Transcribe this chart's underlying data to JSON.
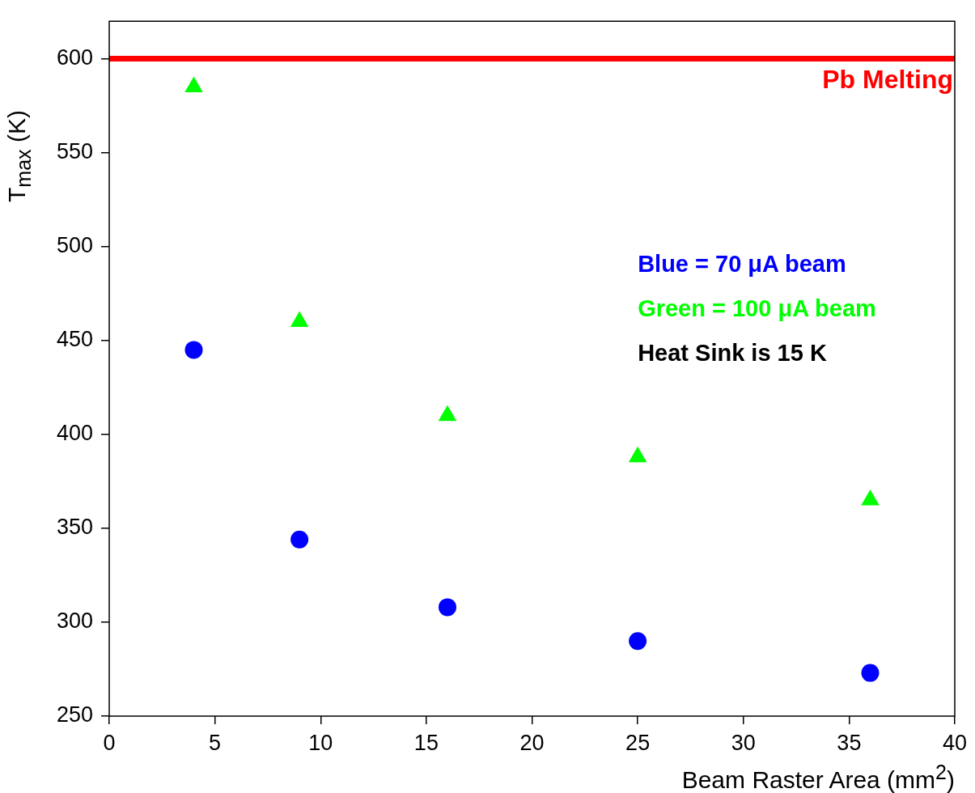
{
  "chart_data": {
    "type": "scatter",
    "xlabel": "Beam Raster Area (mm$^{2}$)",
    "ylabel": "T$_{max}$ (K)",
    "xlim": [
      0,
      40
    ],
    "xticks": [
      0,
      5,
      10,
      15,
      20,
      25,
      30,
      35,
      40
    ],
    "ylim": [
      250,
      620
    ],
    "yticks": [
      250,
      300,
      350,
      400,
      450,
      500,
      550,
      600
    ],
    "grid": false,
    "legend": false,
    "series": [
      {
        "color": "#0000ff",
        "marker": "circle",
        "x": [
          4,
          9,
          16,
          25,
          36
        ],
        "values": [
          445,
          344,
          308,
          290,
          273
        ]
      },
      {
        "color": "#00ff00",
        "marker": "triangle",
        "x": [
          4,
          9,
          16,
          25,
          36
        ],
        "values": [
          585,
          460,
          410,
          388,
          365
        ]
      }
    ],
    "ref_lines": [
      {
        "axis": "y",
        "value": 600,
        "label": "Pb Melting",
        "color": "#ff0000"
      }
    ],
    "annotations": [
      "Blue = 70 μA beam",
      "Green = 100 μA beam",
      "Heat Sink is 15 K"
    ]
  }
}
